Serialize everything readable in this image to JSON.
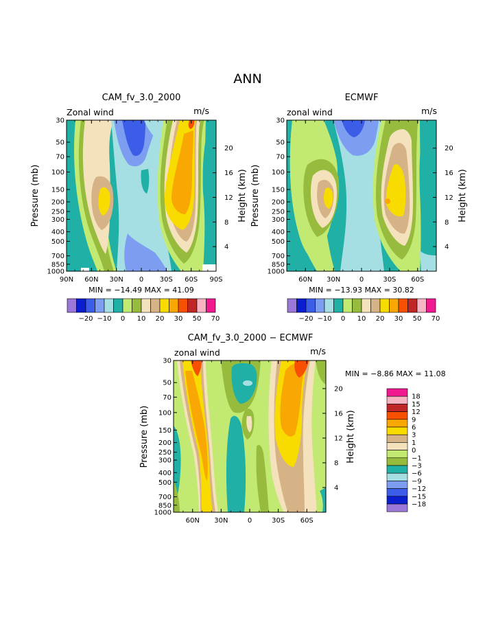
{
  "figure_title": "ANN",
  "colors": {
    "main": [
      "#9a77d8",
      "#0a1ecf",
      "#3b5de8",
      "#7d9ef0",
      "#a6dfe3",
      "#21b0a5",
      "#c2ea72",
      "#97bc3d",
      "#f4e2bd",
      "#d6b287",
      "#f8dc00",
      "#f9a703",
      "#f75000",
      "#bf2727",
      "#f9b4c3",
      "#f0198f"
    ],
    "diff": [
      "#9a77d8",
      "#0a1ecf",
      "#3b5de8",
      "#7d9ef0",
      "#a6dfe3",
      "#21b0a5",
      "#97bc3d",
      "#c2ea72",
      "#f4e2bd",
      "#d6b287",
      "#f8dc00",
      "#f9a703",
      "#f75000",
      "#bf2727",
      "#f9b4c3",
      "#f0198f"
    ]
  },
  "chart_data": [
    {
      "type": "contour",
      "title": "CAM_fv_3.0_2000",
      "subtitle_left": "Zonal wind",
      "subtitle_right": "m/s",
      "ylabel": "Pressure (mb)",
      "y2label": "Height (km)",
      "x_ticks": [
        "90N",
        "60N",
        "30N",
        "0",
        "30S",
        "60S",
        "90S"
      ],
      "y_ticks": [
        "30",
        "50",
        "70",
        "100",
        "150",
        "200",
        "250",
        "300",
        "400",
        "500",
        "700",
        "850",
        "1000"
      ],
      "y2_ticks": [
        "20",
        "16",
        "12",
        "8",
        "4"
      ],
      "stats": "MIN = −14.49   MAX =  41.09",
      "min": -14.49,
      "max": 41.09,
      "colorbar_labels": [
        "−20",
        "−10",
        "0",
        "10",
        "20",
        "30",
        "50",
        "70"
      ]
    },
    {
      "type": "contour",
      "title": "ECMWF",
      "subtitle_left": "zonal wind",
      "subtitle_right": "m/s",
      "ylabel": "Pressure (mb)",
      "y2label": "Height (km)",
      "x_ticks": [
        "60N",
        "30N",
        "0",
        "30S",
        "60S"
      ],
      "y_ticks": [
        "30",
        "50",
        "70",
        "100",
        "150",
        "200",
        "250",
        "300",
        "400",
        "500",
        "700",
        "850",
        "1000"
      ],
      "y2_ticks": [
        "20",
        "16",
        "12",
        "8",
        "4"
      ],
      "stats": "MIN = −13.93   MAX =  30.82",
      "min": -13.93,
      "max": 30.82,
      "colorbar_labels": [
        "−20",
        "−10",
        "0",
        "10",
        "20",
        "30",
        "50",
        "70"
      ]
    },
    {
      "type": "contour",
      "title": "CAM_fv_3.0_2000 − ECMWF",
      "subtitle_left": "zonal wind",
      "subtitle_right": "m/s",
      "ylabel": "Pressure (mb)",
      "y2label": "Height (km)",
      "x_ticks": [
        "60N",
        "30N",
        "0",
        "30S",
        "60S"
      ],
      "y_ticks": [
        "30",
        "50",
        "70",
        "100",
        "150",
        "200",
        "250",
        "300",
        "400",
        "500",
        "700",
        "850",
        "1000"
      ],
      "y2_ticks": [
        "20",
        "16",
        "12",
        "8",
        "4"
      ],
      "stats": "MIN =  −8.86   MAX =  11.08",
      "min": -8.86,
      "max": 11.08,
      "legend_labels": [
        "18",
        "15",
        "12",
        "9",
        "6",
        "3",
        "1",
        "0",
        "−1",
        "−3",
        "−6",
        "−9",
        "−12",
        "−15",
        "−18"
      ]
    }
  ]
}
